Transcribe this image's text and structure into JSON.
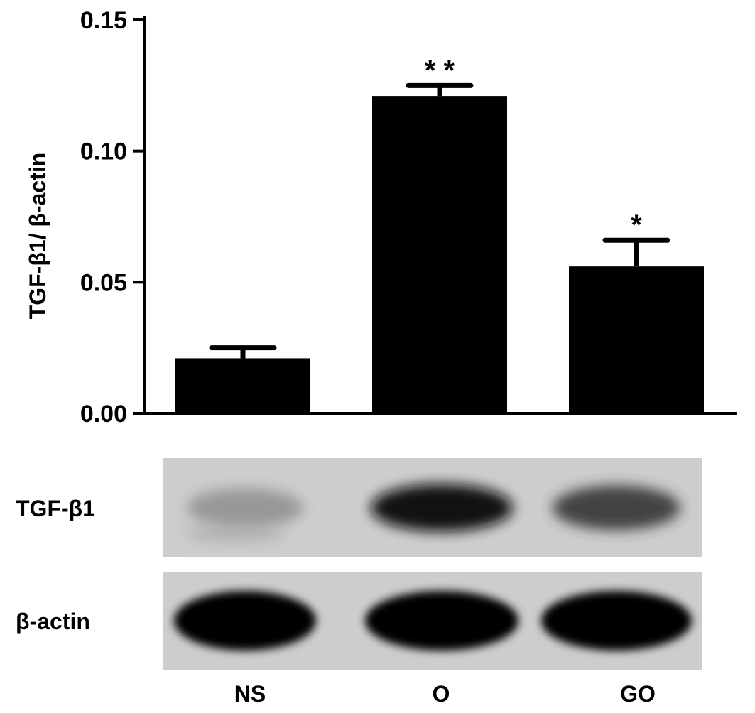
{
  "chart_data": {
    "type": "bar",
    "ylabel": "TGF-β1/ β-actin",
    "ylim": [
      0,
      0.15
    ],
    "yticks": [
      "0.00",
      "0.05",
      "0.10",
      "0.15"
    ],
    "ytick_values": [
      0.0,
      0.05,
      0.1,
      0.15
    ],
    "categories": [
      "NS",
      "O",
      "GO"
    ],
    "values": [
      0.021,
      0.121,
      0.056
    ],
    "errors": [
      0.004,
      0.004,
      0.01
    ],
    "significance": [
      "",
      "* *",
      "*"
    ],
    "bar_color": "#000000",
    "grid": false
  },
  "blots": [
    {
      "label": "TGF-β1",
      "band_intensity": [
        0.35,
        0.95,
        0.75
      ]
    },
    {
      "label": "β-actin",
      "band_intensity": [
        1.0,
        1.0,
        1.0
      ]
    }
  ],
  "lanes": [
    "NS",
    "O",
    "GO"
  ]
}
